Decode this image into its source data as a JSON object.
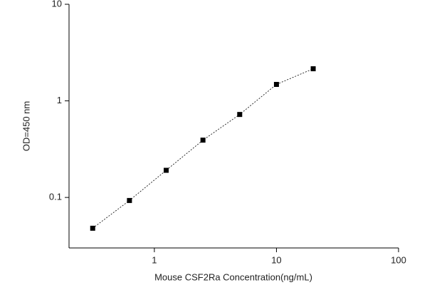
{
  "chart_data": {
    "type": "line",
    "x_label": "Mouse CSF2Ra Concentration(ng/mL)",
    "y_label": "OD=450 nm",
    "x": [
      0.3125,
      0.625,
      1.25,
      2.5,
      5,
      10,
      20
    ],
    "values": [
      0.048,
      0.093,
      0.191,
      0.392,
      0.723,
      1.48,
      2.15
    ],
    "color": "#000000",
    "xscale": "log",
    "yscale": "log",
    "xlim": [
      0.2,
      100
    ],
    "ylim": [
      0.03,
      10
    ],
    "xticks": [
      1,
      10,
      100
    ],
    "yticks": [
      0.1,
      1,
      10
    ]
  }
}
